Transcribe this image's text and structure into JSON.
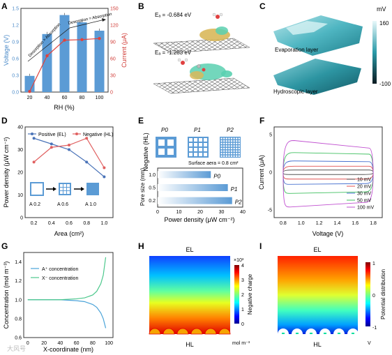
{
  "figure": {
    "panel_labels": [
      "A",
      "B",
      "C",
      "D",
      "E",
      "F",
      "G",
      "H",
      "I"
    ]
  },
  "panelA": {
    "left_axis_label": "Voltage (V)",
    "right_axis_label": "Current (μA)",
    "x_axis_label": "RH (%)",
    "annotation_left": "Desorption > Absorption",
    "annotation_right": "Desorption ≈ Absorption"
  },
  "panelB": {
    "energy_top": "Eₐ = -0.684 eV",
    "energy_bottom": "Eₐ = -1.283 eV"
  },
  "panelC": {
    "unit": "mV",
    "cb_max": "160",
    "cb_min": "-100",
    "layer_top": "Evaporation layer",
    "layer_bottom": "Hydroscopic layer"
  },
  "panelD": {
    "y_axis_label": "Power density (μW cm⁻²)",
    "x_axis_label": "Area (cm²)",
    "legend_pos": "Positive (EL)",
    "legend_neg": "Negative (HL)",
    "inset_labels": [
      "A 0.2",
      "A 0.6",
      "A 1.0"
    ]
  },
  "panelE": {
    "title_vertical": "Negative (HL)",
    "pattern_labels": [
      "P0",
      "P1",
      "P2"
    ],
    "surface_area_note": "Surface aera = 0.8 cm²",
    "y_axis_label": "Pore size (mm)",
    "x_axis_label": "Power density (μW cm⁻²)",
    "bar_labels": [
      "P0",
      "P1",
      "P2"
    ]
  },
  "panelF": {
    "y_axis_label": "Current (μA)",
    "x_axis_label": "Voltage (V)",
    "legend": [
      "10 mV",
      "20 mV",
      "30 mV",
      "50 mV",
      "100 mV"
    ]
  },
  "panelG": {
    "y_axis_label": "Concentration (mol m⁻³)",
    "x_axis_label": "X-coordinate (nm)",
    "legend": [
      "A⁺ concentration",
      "X⁻ concentration"
    ]
  },
  "panelH": {
    "top_label": "EL",
    "bottom_label": "HL",
    "cb_exponent": "×10³",
    "cb_label": "Negative charge",
    "cb_unit": "mol m⁻³"
  },
  "panelI": {
    "top_label": "EL",
    "bottom_label": "HL",
    "cb_label": "Potential distribution",
    "cb_unit": "V"
  },
  "watermark": "大风号",
  "chart_data": [
    {
      "type": "bar",
      "panel": "A",
      "categories": [
        "20",
        "40",
        "60",
        "80",
        "100"
      ],
      "series": [
        {
          "name": "Voltage (V)",
          "values": [
            0.29,
            1.04,
            1.38,
            1.25,
            1.1
          ],
          "color": "#5b9bd5"
        },
        {
          "name": "Current (μA)",
          "values": [
            1,
            65,
            93,
            94,
            96
          ],
          "color": "#e0433d"
        }
      ],
      "xlabel": "RH (%)",
      "ylabel": "Voltage (V)",
      "ylim": [
        0,
        1.5
      ],
      "yticks": [
        "0.0",
        "0.3",
        "0.6",
        "0.9",
        "1.2",
        "1.5"
      ],
      "y2label": "Current (μA)",
      "y2lim": [
        0,
        150
      ],
      "y2ticks": [
        "0",
        "30",
        "60",
        "90",
        "120",
        "150"
      ]
    },
    {
      "type": "line",
      "panel": "D",
      "x": [
        0.2,
        0.4,
        0.6,
        0.8,
        1.0
      ],
      "series": [
        {
          "name": "Positive (EL)",
          "values": [
            35.0,
            32.5,
            30.0,
            24.5,
            18.0
          ],
          "color": "#4a73b8"
        },
        {
          "name": "Negative (HL)",
          "values": [
            24.5,
            31.0,
            32.0,
            35.0,
            22.0
          ],
          "color": "#e06060"
        }
      ],
      "xlabel": "Area (cm²)",
      "ylabel": "Power density (μW cm⁻²)",
      "xlim": [
        0.1,
        1.1
      ],
      "ylim": [
        0,
        40
      ],
      "xticks": [
        "0.2",
        "0.4",
        "0.6",
        "0.8",
        "1.0"
      ],
      "yticks": [
        "0",
        "10",
        "20",
        "30",
        "40"
      ]
    },
    {
      "type": "bar",
      "panel": "E",
      "orientation": "horizontal",
      "categories": [
        "1.0",
        "0.5",
        "0.2"
      ],
      "values": [
        25,
        33,
        35
      ],
      "labels": [
        "P0",
        "P1",
        "P2"
      ],
      "xlabel": "Power density (μW cm⁻²)",
      "ylabel": "Pore size (mm)",
      "xlim": [
        0,
        40
      ],
      "xticks": [
        "0",
        "10",
        "20",
        "30",
        "40"
      ]
    },
    {
      "type": "line",
      "panel": "F",
      "xlabel": "Voltage (V)",
      "ylabel": "Current (μA)",
      "xlim": [
        0.7,
        1.9
      ],
      "ylim": [
        -6,
        6
      ],
      "xticks": [
        "0.8",
        "1.0",
        "1.2",
        "1.4",
        "1.6",
        "1.8"
      ],
      "yticks": [
        "-5",
        "0",
        "5"
      ],
      "series": [
        {
          "name": "10 mV",
          "x": [
            0.8,
            1.8
          ],
          "upper": [
            0.3,
            0.3
          ],
          "lower": [
            -0.3,
            -0.3
          ],
          "color": "#555555"
        },
        {
          "name": "20 mV",
          "x": [
            0.8,
            1.8
          ],
          "upper": [
            0.8,
            0.8
          ],
          "lower": [
            -0.9,
            -0.9
          ],
          "color": "#e05050"
        },
        {
          "name": "30 mV",
          "x": [
            0.8,
            1.8
          ],
          "upper": [
            1.5,
            1.4
          ],
          "lower": [
            -1.6,
            -1.5
          ],
          "color": "#4a73d0"
        },
        {
          "name": "50 mV",
          "x": [
            0.8,
            1.8
          ],
          "upper": [
            2.6,
            2.4
          ],
          "lower": [
            -2.8,
            -2.6
          ],
          "color": "#40c060"
        },
        {
          "name": "100 mV",
          "x": [
            0.8,
            1.8
          ],
          "upper": [
            4.2,
            3.2
          ],
          "lower": [
            -4.6,
            -4.0
          ],
          "color": "#c050d0"
        }
      ]
    },
    {
      "type": "line",
      "panel": "G",
      "x": [
        0,
        20,
        40,
        60,
        70,
        80,
        85,
        90,
        93,
        96
      ],
      "series": [
        {
          "name": "A⁺ concentration",
          "values": [
            1.0,
            1.0,
            1.0,
            0.99,
            0.98,
            0.95,
            0.92,
            0.86,
            0.8,
            0.7
          ],
          "color": "#4aa3d8"
        },
        {
          "name": "X⁻ concentration",
          "values": [
            1.0,
            1.0,
            1.0,
            1.01,
            1.02,
            1.05,
            1.09,
            1.17,
            1.26,
            1.45
          ],
          "color": "#4cc88c"
        }
      ],
      "xlabel": "X-coordinate (nm)",
      "ylabel": "Concentration (mol m⁻³)",
      "xlim": [
        -5,
        105
      ],
      "ylim": [
        0.6,
        1.5
      ],
      "xticks": [
        "0",
        "20",
        "40",
        "60",
        "80",
        "100"
      ],
      "yticks": [
        "0.6",
        "0.8",
        "1.0",
        "1.2",
        "1.4"
      ]
    },
    {
      "type": "heatmap",
      "panel": "H",
      "colorbar_ticks": [
        "4",
        "3",
        "2",
        "1",
        "0"
      ],
      "colorbar_range": [
        0,
        4
      ]
    },
    {
      "type": "heatmap",
      "panel": "I",
      "colorbar_ticks": [
        "1",
        "0",
        "-1"
      ],
      "colorbar_range": [
        -1,
        1
      ]
    }
  ]
}
